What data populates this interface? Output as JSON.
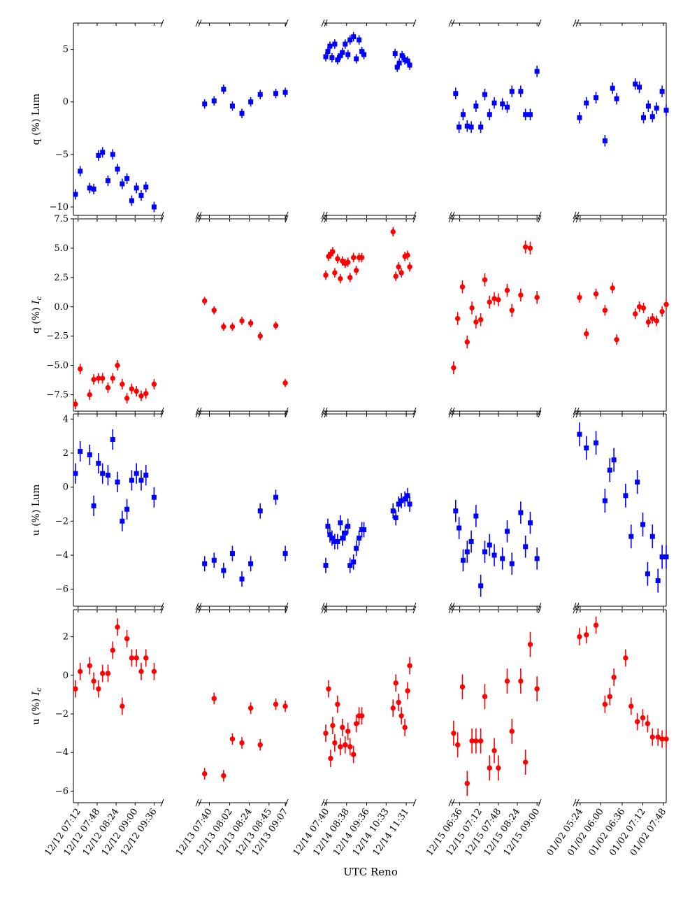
{
  "chart_data": {
    "type": "scatter",
    "xlabel": "UTC Reno",
    "layout": "4 rows x 5 columns broken-axis scatter with error bars",
    "colors": {
      "lum": "#0000ff",
      "ic": "#ff0000"
    },
    "rows": [
      {
        "ylabel": "q (%) Lum",
        "marker": "square",
        "color": "#0000ff",
        "ylim": [
          -10.8,
          7.5
        ],
        "yticks": [
          5,
          0,
          -5,
          -10
        ],
        "ytick_labels": [
          "5",
          "0",
          "−5",
          "−10"
        ]
      },
      {
        "ylabel": "q (%) Ic",
        "marker": "circle",
        "color": "#ff0000",
        "ylim": [
          -8.9,
          7.5
        ],
        "yticks": [
          7.5,
          5.0,
          2.5,
          0.0,
          -2.5,
          -5.0,
          -7.5
        ],
        "ytick_labels": [
          "7.5",
          "5.0",
          "2.5",
          "0.0",
          "−2.5",
          "−5.0",
          "−7.5"
        ]
      },
      {
        "ylabel": "u (%) Lum",
        "marker": "square",
        "color": "#0000ff",
        "ylim": [
          -7.0,
          4.3
        ],
        "yticks": [
          4,
          2,
          0,
          -2,
          -4,
          -6
        ],
        "ytick_labels": [
          "4",
          "2",
          "0",
          "−2",
          "−4",
          "−6"
        ]
      },
      {
        "ylabel": "u (%) Ic",
        "marker": "circle",
        "color": "#ff0000",
        "ylim": [
          -6.6,
          3.4
        ],
        "yticks": [
          2,
          0,
          -2,
          -4,
          -6
        ],
        "ytick_labels": [
          "2",
          "0",
          "−2",
          "−4",
          "−6"
        ]
      }
    ],
    "columns": [
      {
        "xlim": [
          0,
          132
        ],
        "ticks": [
          {
            "x": 7,
            "label": "12/12 07:12"
          },
          {
            "x": 35,
            "label": "12/12 07:48"
          },
          {
            "x": 63,
            "label": "12/12 08:24"
          },
          {
            "x": 91,
            "label": "12/12 09:00"
          },
          {
            "x": 119,
            "label": "12/12 09:36"
          }
        ]
      },
      {
        "xlim": [
          0,
          132
        ],
        "ticks": [
          {
            "x": 17,
            "label": "12/13 07:40"
          },
          {
            "x": 47,
            "label": "12/13 08:02"
          },
          {
            "x": 76,
            "label": "12/13 08:24"
          },
          {
            "x": 105,
            "label": "12/13 08:45"
          },
          {
            "x": 129,
            "label": "12/13 09:07"
          }
        ]
      },
      {
        "xlim": [
          0,
          132
        ],
        "ticks": [
          {
            "x": 4,
            "label": "12/14 07:40"
          },
          {
            "x": 33,
            "label": "12/14 08:38"
          },
          {
            "x": 62,
            "label": "12/14 09:36"
          },
          {
            "x": 90,
            "label": "12/14 10:33"
          },
          {
            "x": 119,
            "label": "12/14 11:31"
          }
        ]
      },
      {
        "xlim": [
          0,
          132
        ],
        "ticks": [
          {
            "x": 13,
            "label": "12/15 06:36"
          },
          {
            "x": 42,
            "label": "12/15 07:12"
          },
          {
            "x": 70,
            "label": "12/15 07:48"
          },
          {
            "x": 98,
            "label": "12/15 08:24"
          },
          {
            "x": 127,
            "label": "12/15 09:00"
          }
        ]
      },
      {
        "xlim": [
          0,
          132
        ],
        "ticks": [
          {
            "x": 7,
            "label": "01/02 05:24"
          },
          {
            "x": 37,
            "label": "01/02 06:00"
          },
          {
            "x": 68,
            "label": "01/02 06:36"
          },
          {
            "x": 98,
            "label": "01/02 07:12"
          },
          {
            "x": 128,
            "label": "01/02 07:48"
          }
        ]
      }
    ],
    "panels": [
      [
        {
          "x": [
            3,
            10,
            24,
            30,
            37,
            43,
            51,
            58,
            65,
            72,
            79,
            86,
            93,
            100,
            107,
            119
          ],
          "y": [
            -8.8,
            -6.6,
            -8.2,
            -8.3,
            -5.1,
            -4.8,
            -7.5,
            -5.0,
            -6.4,
            -7.8,
            -7.3,
            -9.4,
            -8.2,
            -8.9,
            -8.1,
            -10.0
          ],
          "err": 0.5
        },
        {
          "x": [
            10,
            24,
            38,
            51,
            65,
            78,
            92,
            115,
            129
          ],
          "y": [
            -0.2,
            0.1,
            1.2,
            -0.4,
            -1.1,
            0.0,
            0.7,
            0.8,
            0.9
          ],
          "err": 0.45
        },
        {
          "x": [
            3,
            6,
            9,
            12,
            16,
            20,
            24,
            27,
            31,
            35,
            38,
            43,
            47,
            51,
            55,
            58,
            103,
            106,
            109,
            113,
            117,
            121,
            124
          ],
          "y": [
            4.3,
            4.8,
            5.3,
            4.2,
            5.5,
            4.0,
            4.4,
            4.7,
            5.5,
            4.5,
            5.9,
            6.2,
            4.1,
            5.9,
            4.8,
            4.5,
            4.6,
            3.3,
            3.7,
            4.4,
            4.0,
            3.9,
            3.5
          ],
          "err": 0.45
        },
        {
          "x": [
            7,
            12,
            18,
            24,
            30,
            37,
            44,
            50,
            57,
            64,
            76,
            83,
            90,
            103,
            110,
            117,
            127
          ],
          "y": [
            0.8,
            -2.4,
            -1.2,
            -2.3,
            -2.4,
            -0.4,
            -2.4,
            0.7,
            -1.2,
            -0.1,
            -0.2,
            -0.5,
            1.0,
            1.0,
            -1.2,
            -1.2,
            2.9
          ],
          "err": 0.55
        },
        {
          "x": [
            6,
            16,
            30,
            43,
            54,
            60,
            87,
            93,
            99,
            106,
            112,
            118,
            126,
            132
          ],
          "y": [
            -1.5,
            -0.1,
            0.4,
            -3.7,
            1.3,
            0.3,
            1.7,
            1.4,
            -1.5,
            -0.4,
            -1.4,
            -0.6,
            1.0,
            -0.8
          ],
          "err": 0.55
        }
      ],
      [
        {
          "x": [
            3,
            10,
            24,
            30,
            37,
            43,
            51,
            58,
            65,
            72,
            79,
            86,
            93,
            100,
            107,
            119
          ],
          "y": [
            -8.3,
            -5.3,
            -7.5,
            -6.2,
            -6.1,
            -6.1,
            -6.9,
            -6.1,
            -5.0,
            -6.6,
            -7.8,
            -7.0,
            -7.2,
            -7.6,
            -7.4,
            -6.6
          ],
          "err": 0.45
        },
        {
          "x": [
            10,
            24,
            38,
            51,
            65,
            78,
            92,
            115,
            129
          ],
          "y": [
            0.5,
            -0.3,
            -1.7,
            -1.7,
            -1.2,
            -1.4,
            -2.5,
            -1.6,
            -6.5
          ],
          "err": 0.35
        },
        {
          "x": [
            3,
            7,
            10,
            13,
            16,
            20,
            24,
            27,
            31,
            35,
            38,
            43,
            47,
            51,
            55,
            100,
            104,
            108,
            112,
            117,
            121,
            124
          ],
          "y": [
            2.7,
            4.3,
            4.5,
            4.7,
            2.9,
            4.1,
            2.4,
            3.9,
            3.7,
            3.8,
            2.5,
            4.2,
            3.1,
            4.2,
            4.2,
            6.4,
            2.6,
            3.4,
            2.9,
            4.3,
            4.4,
            3.4
          ],
          "err": 0.4
        },
        {
          "x": [
            4,
            10,
            17,
            24,
            31,
            37,
            44,
            50,
            57,
            64,
            70,
            83,
            90,
            103,
            110,
            117,
            127
          ],
          "y": [
            -5.2,
            -1.0,
            1.7,
            -3.0,
            -0.1,
            -1.3,
            -1.1,
            2.3,
            0.4,
            0.7,
            0.6,
            1.4,
            -0.3,
            1.0,
            5.1,
            5.0,
            0.8
          ],
          "err": 0.55
        },
        {
          "x": [
            6,
            16,
            30,
            43,
            54,
            60,
            87,
            93,
            99,
            106,
            112,
            118,
            126,
            132
          ],
          "y": [
            0.8,
            -2.3,
            1.1,
            -0.3,
            1.6,
            -2.8,
            -0.6,
            0.0,
            -0.1,
            -1.3,
            -1.0,
            -1.2,
            -0.4,
            0.2
          ],
          "err": 0.45
        }
      ],
      [
        {
          "x": [
            3,
            10,
            24,
            30,
            37,
            43,
            51,
            58,
            65,
            72,
            79,
            86,
            93,
            100,
            107,
            119
          ],
          "y": [
            0.8,
            2.1,
            1.9,
            -1.1,
            1.4,
            0.8,
            0.7,
            2.8,
            0.3,
            -2.0,
            -1.3,
            0.4,
            0.8,
            0.4,
            0.7,
            -0.6
          ],
          "err": 0.6
        },
        {
          "x": [
            10,
            24,
            38,
            51,
            65,
            78,
            92,
            115,
            129
          ],
          "y": [
            -4.5,
            -4.3,
            -4.9,
            -3.9,
            -5.4,
            -4.5,
            -1.4,
            -0.6,
            -3.9
          ],
          "err": 0.45
        },
        {
          "x": [
            3,
            6,
            9,
            12,
            16,
            20,
            24,
            27,
            31,
            35,
            38,
            43,
            47,
            51,
            55,
            58,
            100,
            104,
            108,
            112,
            117,
            121,
            124
          ],
          "y": [
            -4.6,
            -2.3,
            -2.8,
            -3.0,
            -3.2,
            -3.2,
            -2.1,
            -3.0,
            -2.7,
            -2.3,
            -4.6,
            -4.4,
            -3.6,
            -3.0,
            -2.5,
            -2.5,
            -1.4,
            -1.8,
            -1.0,
            -0.8,
            -0.7,
            -0.5,
            -1.0
          ],
          "err": 0.45
        },
        {
          "x": [
            7,
            12,
            18,
            24,
            30,
            37,
            44,
            50,
            57,
            64,
            76,
            83,
            90,
            103,
            110,
            117,
            127
          ],
          "y": [
            -1.4,
            -2.4,
            -4.3,
            -3.8,
            -3.2,
            -1.7,
            -5.8,
            -3.8,
            -3.4,
            -4.0,
            -4.2,
            -2.6,
            -4.5,
            -1.5,
            -3.5,
            -2.1,
            -4.2
          ],
          "err": 0.65
        },
        {
          "x": [
            6,
            16,
            30,
            43,
            50,
            56,
            73,
            81,
            90,
            98,
            105,
            112,
            120,
            126,
            132
          ],
          "y": [
            3.1,
            2.3,
            2.6,
            -0.8,
            1.0,
            1.6,
            -0.5,
            -2.9,
            0.3,
            -2.2,
            -5.1,
            -2.9,
            -5.5,
            -4.1,
            -4.1
          ],
          "err": 0.7
        }
      ],
      [
        {
          "x": [
            3,
            10,
            24,
            30,
            37,
            43,
            51,
            58,
            65,
            72,
            79,
            86,
            93,
            100,
            107,
            119
          ],
          "y": [
            -0.7,
            0.2,
            0.5,
            -0.3,
            -0.7,
            0.1,
            0.1,
            1.3,
            2.5,
            -1.6,
            1.9,
            0.9,
            0.9,
            0.2,
            0.9,
            0.2
          ],
          "err": 0.45
        },
        {
          "x": [
            10,
            24,
            38,
            51,
            65,
            78,
            92,
            115,
            129
          ],
          "y": [
            -5.1,
            -1.2,
            -5.2,
            -3.3,
            -3.5,
            -1.7,
            -3.6,
            -1.5,
            -1.6
          ],
          "err": 0.3
        },
        {
          "x": [
            3,
            7,
            10,
            13,
            16,
            20,
            24,
            27,
            31,
            35,
            38,
            43,
            47,
            51,
            55,
            100,
            104,
            108,
            112,
            117,
            121,
            124
          ],
          "y": [
            -3.0,
            -0.7,
            -4.3,
            -2.6,
            -3.5,
            -1.5,
            -3.7,
            -2.7,
            -3.6,
            -2.9,
            -3.7,
            -4.1,
            -2.5,
            -2.1,
            -2.1,
            -1.7,
            -0.4,
            -1.4,
            -2.1,
            -2.7,
            -0.8,
            0.5
          ],
          "err": 0.45
        },
        {
          "x": [
            4,
            10,
            17,
            24,
            31,
            37,
            44,
            50,
            57,
            64,
            70,
            83,
            90,
            103,
            110,
            117,
            127
          ],
          "y": [
            -3.0,
            -3.6,
            -0.6,
            -5.6,
            -3.4,
            -3.4,
            -3.4,
            -1.1,
            -4.8,
            -3.9,
            -4.8,
            -0.3,
            -2.9,
            -0.3,
            -4.5,
            1.6,
            -0.7
          ],
          "err": 0.65
        },
        {
          "x": [
            6,
            16,
            30,
            43,
            50,
            56,
            73,
            81,
            90,
            98,
            105,
            112,
            120,
            126,
            132
          ],
          "y": [
            2.0,
            2.1,
            2.6,
            -1.5,
            -1.1,
            -0.1,
            0.9,
            -1.6,
            -2.4,
            -2.2,
            -2.5,
            -3.2,
            -3.2,
            -3.3,
            -3.3
          ],
          "err": 0.45
        }
      ]
    ]
  }
}
